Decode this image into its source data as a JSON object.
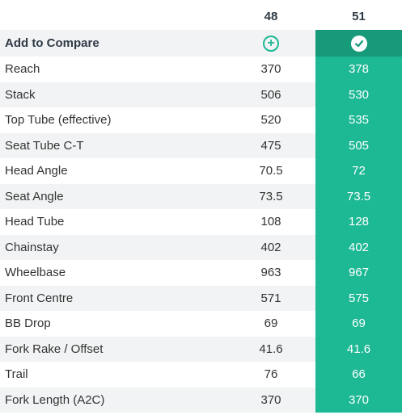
{
  "sizes": [
    "48",
    "51"
  ],
  "compare_label": "Add to Compare",
  "rows": [
    {
      "label": "Reach",
      "v48": "370",
      "v51": "378"
    },
    {
      "label": "Stack",
      "v48": "506",
      "v51": "530"
    },
    {
      "label": "Top Tube (effective)",
      "v48": "520",
      "v51": "535"
    },
    {
      "label": "Seat Tube C-T",
      "v48": "475",
      "v51": "505"
    },
    {
      "label": "Head Angle",
      "v48": "70.5",
      "v51": "72"
    },
    {
      "label": "Seat Angle",
      "v48": "73.5",
      "v51": "73.5"
    },
    {
      "label": "Head Tube",
      "v48": "108",
      "v51": "128"
    },
    {
      "label": "Chainstay",
      "v48": "402",
      "v51": "402"
    },
    {
      "label": "Wheelbase",
      "v48": "963",
      "v51": "967"
    },
    {
      "label": "Front Centre",
      "v48": "571",
      "v51": "575"
    },
    {
      "label": "BB Drop",
      "v48": "69",
      "v51": "69"
    },
    {
      "label": "Fork Rake / Offset",
      "v48": "41.6",
      "v51": "41.6"
    },
    {
      "label": "Trail",
      "v48": "76",
      "v51": "66"
    },
    {
      "label": "Fork Length (A2C)",
      "v48": "370",
      "v51": "370"
    }
  ],
  "icons": {
    "add": "plus-circle-icon",
    "selected": "check-circle-icon"
  },
  "colors": {
    "accent": "#1db894",
    "accent_dark": "#169a7a",
    "alt_row": "#f2f3f4"
  }
}
